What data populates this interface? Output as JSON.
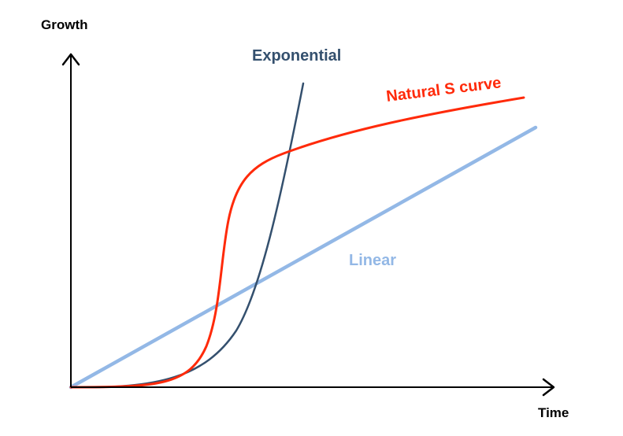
{
  "axes": {
    "y_label": "Growth",
    "x_label": "Time"
  },
  "curves": {
    "exponential": {
      "label": "Exponential",
      "color": "#34506e"
    },
    "s_curve": {
      "label": "Natural S curve",
      "color": "#ff2a0a"
    },
    "linear": {
      "label": "Linear",
      "color": "#93b8e6"
    }
  }
}
